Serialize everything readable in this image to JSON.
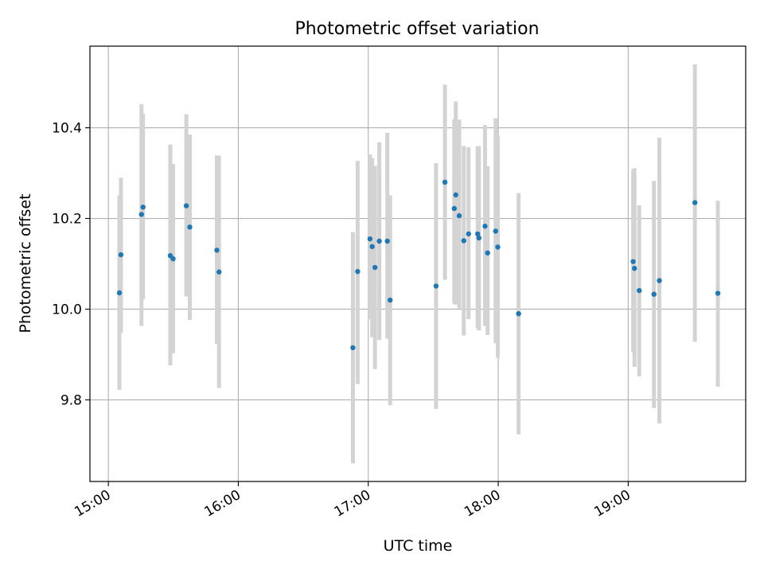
{
  "chart_data": {
    "type": "scatter",
    "title": "Photometric offset variation",
    "xlabel": "UTC time",
    "ylabel": "Photometric offset",
    "x_tick_labels": [
      "15:00",
      "16:00",
      "17:00",
      "18:00",
      "19:00"
    ],
    "y_tick_labels": [
      "9.8",
      "10.0",
      "10.2",
      "10.4"
    ],
    "xlim": [
      "14:51:30",
      "19:54:15"
    ],
    "ylim": [
      9.62,
      10.58
    ],
    "grid": true,
    "marker_color": "#1f77b4",
    "errorbar_color": "#d3d3d3",
    "series": [
      {
        "x": [
          "15:05:06",
          "15:05:48",
          "15:15:18",
          "15:16:00",
          "15:28:36",
          "15:29:54",
          "15:36:00",
          "15:37:36",
          "15:50:06",
          "15:51:06",
          "16:52:54",
          "16:55:06",
          "17:00:48",
          "17:01:48",
          "17:03:06",
          "17:05:06",
          "17:08:48",
          "17:10:06",
          "17:31:18",
          "17:35:24",
          "17:39:42",
          "17:40:24",
          "17:42:00",
          "17:44:06",
          "17:46:18",
          "17:50:30",
          "17:51:06",
          "17:53:54",
          "17:55:06",
          "17:58:48",
          "17:59:48",
          "18:09:24",
          "19:02:18",
          "19:02:54",
          "19:05:06",
          "19:11:54",
          "19:14:24",
          "19:30:48",
          "19:41:24"
        ],
        "y": [
          10.036,
          10.12,
          10.209,
          10.225,
          10.118,
          10.111,
          10.228,
          10.181,
          10.13,
          10.082,
          9.915,
          10.083,
          10.155,
          10.138,
          10.092,
          10.15,
          10.15,
          10.02,
          10.051,
          10.28,
          10.222,
          10.252,
          10.206,
          10.151,
          10.166,
          10.166,
          10.157,
          10.183,
          10.124,
          10.172,
          10.137,
          9.99,
          10.105,
          10.09,
          10.041,
          10.033,
          10.063,
          10.235,
          10.035
        ],
        "yerr_low": [
          9.822,
          9.948,
          9.963,
          10.022,
          9.876,
          9.903,
          10.028,
          9.976,
          9.923,
          9.826,
          9.66,
          9.835,
          9.978,
          9.938,
          9.868,
          9.932,
          9.935,
          9.788,
          9.78,
          10.065,
          10.012,
          10.01,
          10.002,
          9.942,
          9.978,
          9.958,
          9.953,
          9.963,
          9.943,
          9.925,
          9.893,
          9.724,
          9.905,
          9.873,
          9.852,
          9.782,
          9.748,
          9.928,
          9.829
        ],
        "yerr_high": [
          10.251,
          10.29,
          10.452,
          10.431,
          10.363,
          10.32,
          10.43,
          10.385,
          10.339,
          10.339,
          10.17,
          10.327,
          10.341,
          10.333,
          10.316,
          10.368,
          10.389,
          10.251,
          10.322,
          10.495,
          10.419,
          10.458,
          10.418,
          10.36,
          10.357,
          10.359,
          10.36,
          10.406,
          10.315,
          10.421,
          10.382,
          10.256,
          10.308,
          10.311,
          10.229,
          10.283,
          10.378,
          10.54,
          10.239
        ]
      }
    ]
  }
}
